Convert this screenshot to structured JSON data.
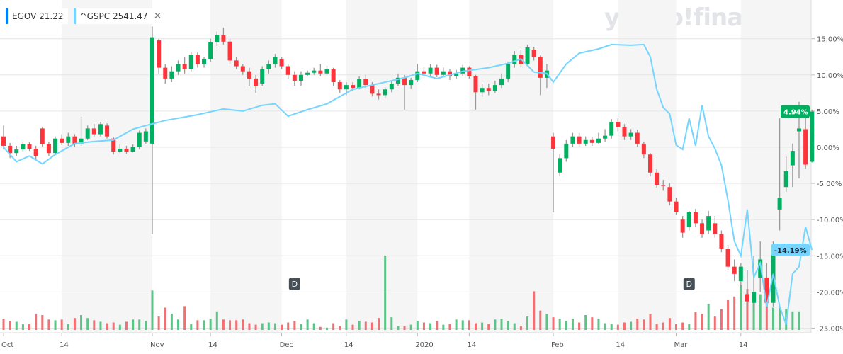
{
  "watermark": "yahoo!finance",
  "legend": [
    {
      "symbol": "EGOV",
      "value": "21.22",
      "color": "#0081f2"
    },
    {
      "symbol": "^GSPC",
      "value": "2541.47",
      "color": "#75d5ff",
      "close_icon": "close-icon"
    }
  ],
  "chart_data": {
    "type": "candlestick",
    "y_unit": "% change",
    "ylim": [
      -25,
      18
    ],
    "yticks": [
      "15.00%",
      "10.00%",
      "5.00%",
      "0.00%",
      "-5.00%",
      "-10.00%",
      "-15.00%",
      "-20.00%",
      "-25.00%"
    ],
    "ytick_values": [
      15,
      10,
      5,
      0,
      -5,
      -10,
      -15,
      -20,
      -25
    ],
    "xticks": [
      {
        "label": "Oct",
        "day": 0
      },
      {
        "label": "14",
        "day": 9
      },
      {
        "label": "Nov",
        "day": 23
      },
      {
        "label": "14",
        "day": 32
      },
      {
        "label": "Dec",
        "day": 43
      },
      {
        "label": "14",
        "day": 53
      },
      {
        "label": "2020",
        "day": 64
      },
      {
        "label": "14",
        "day": 72
      },
      {
        "label": "Feb",
        "day": 85
      },
      {
        "label": "14",
        "day": 95
      },
      {
        "label": "Mar",
        "day": 104
      },
      {
        "label": "14",
        "day": 114
      }
    ],
    "grid": true,
    "colors": {
      "up": "#00b061",
      "down": "#ff333a",
      "wick": "#999999",
      "compare_line": "#75d5ff",
      "vol_up": "#5bc587",
      "vol_down": "#f36f72",
      "shade": "#f5f5f5"
    },
    "egov_ohlc_note": "each entry is [open, close, high, low] in % change",
    "egov_ohlc": [
      [
        1.5,
        0.2,
        3,
        -0.3
      ],
      [
        0.2,
        -0.8,
        0.6,
        -1.5
      ],
      [
        -0.8,
        -0.3,
        0.2,
        -1.2
      ],
      [
        -0.3,
        0.4,
        0.8,
        -0.6
      ],
      [
        0.4,
        -0.2,
        0.7,
        -0.5
      ],
      [
        -0.2,
        -1.2,
        0.2,
        -1.6
      ],
      [
        2.6,
        0.4,
        2.8,
        0.1
      ],
      [
        0.4,
        -0.8,
        0.8,
        -1.2
      ],
      [
        -0.8,
        1.2,
        1.5,
        -1
      ],
      [
        1.2,
        0.6,
        1.8,
        0.3
      ],
      [
        0.6,
        1.5,
        2,
        0.2
      ],
      [
        1.5,
        0.5,
        1.8,
        0
      ],
      [
        0.5,
        1.2,
        4.2,
        0.2
      ],
      [
        1.2,
        2.6,
        3,
        1
      ],
      [
        2.6,
        1.8,
        3.2,
        1.5
      ],
      [
        1.8,
        3.2,
        3.5,
        1.5
      ],
      [
        3,
        1.5,
        3.3,
        1.2
      ],
      [
        1.2,
        -0.6,
        1.4,
        -1
      ],
      [
        -0.6,
        -0.2,
        0.4,
        -0.8
      ],
      [
        -0.2,
        -0.6,
        0.2,
        -0.9
      ],
      [
        -0.6,
        0,
        0.4,
        -0.7
      ],
      [
        0,
        2,
        2.3,
        -0.3
      ],
      [
        0.8,
        2.2,
        2.6,
        0.5
      ],
      [
        0.5,
        15.2,
        16.7,
        -12
      ],
      [
        14.8,
        11,
        15,
        10.2
      ],
      [
        11,
        9.5,
        11.5,
        8.8
      ],
      [
        9.5,
        10.5,
        11.2,
        9
      ],
      [
        10.5,
        11.5,
        12,
        10
      ],
      [
        11.5,
        10.8,
        12.5,
        10.2
      ],
      [
        10.8,
        12.8,
        13.2,
        10.5
      ],
      [
        12.8,
        11.5,
        13.1,
        11
      ],
      [
        11.5,
        12.2,
        12.5,
        11
      ],
      [
        12.2,
        14.5,
        15,
        11.8
      ],
      [
        14.5,
        15.5,
        16,
        14
      ],
      [
        15.5,
        14.6,
        16.5,
        14.2
      ],
      [
        14.6,
        12,
        15,
        11.5
      ],
      [
        12,
        11.2,
        12.5,
        10.8
      ],
      [
        11.2,
        10.5,
        11.5,
        10
      ],
      [
        10.5,
        9.5,
        11,
        8.5
      ],
      [
        9.5,
        8.5,
        10,
        7.5
      ],
      [
        8.8,
        10.8,
        11.2,
        8.5
      ],
      [
        10.8,
        11.5,
        12,
        10.2
      ],
      [
        11.5,
        12.5,
        12.9,
        11
      ],
      [
        12.2,
        11.2,
        12.5,
        10.8
      ],
      [
        11.2,
        10,
        11.5,
        9.5
      ],
      [
        10,
        9.2,
        10.5,
        8.5
      ],
      [
        9.2,
        10,
        10.5,
        8.5
      ],
      [
        10,
        10.3,
        10.6,
        9.8
      ],
      [
        10.3,
        10.6,
        11,
        10
      ],
      [
        10.6,
        10.2,
        11.5,
        9.8
      ],
      [
        10.2,
        10.8,
        11.3,
        10
      ],
      [
        10.8,
        9,
        11,
        8.5
      ],
      [
        9,
        8,
        9.3,
        7.5
      ],
      [
        8,
        8.6,
        9,
        7.2
      ],
      [
        8.6,
        8.2,
        9,
        7.8
      ],
      [
        8.2,
        9.4,
        9.8,
        8
      ],
      [
        9.4,
        8.6,
        10,
        8.2
      ],
      [
        8.6,
        7.4,
        9,
        7
      ],
      [
        7.4,
        7.2,
        8,
        6.6
      ],
      [
        7.2,
        8,
        8.3,
        6.8
      ],
      [
        8,
        8.8,
        9.2,
        7.6
      ],
      [
        8.8,
        9.6,
        10.2,
        8.5
      ],
      [
        9.6,
        8.6,
        10,
        5.2
      ],
      [
        8.6,
        9.3,
        9.6,
        8.1
      ],
      [
        9.3,
        10.5,
        11.5,
        9
      ],
      [
        10.5,
        10.2,
        11,
        9.8
      ],
      [
        10.2,
        11,
        11.5,
        9.8
      ],
      [
        11,
        10,
        11.4,
        9.7
      ],
      [
        10,
        10.5,
        11,
        9.7
      ],
      [
        10.5,
        9.8,
        10.8,
        9.3
      ],
      [
        9.8,
        10.2,
        10.7,
        9.5
      ],
      [
        10.2,
        11,
        11.4,
        9.8
      ],
      [
        11,
        9.8,
        11.2,
        9.5
      ],
      [
        9.8,
        7.6,
        10,
        5.2
      ],
      [
        7.6,
        8.2,
        8.8,
        7
      ],
      [
        8.2,
        7.8,
        8.8,
        7.2
      ],
      [
        7.8,
        8.6,
        9.2,
        7.5
      ],
      [
        8.6,
        9.5,
        10.2,
        8.2
      ],
      [
        9.5,
        11.5,
        11.8,
        9
      ],
      [
        11.5,
        12.8,
        13.3,
        11
      ],
      [
        12.8,
        11.5,
        13.5,
        11
      ],
      [
        11.5,
        13.8,
        14.2,
        11.2
      ],
      [
        13.5,
        12.5,
        13.8,
        12
      ],
      [
        12.5,
        9.6,
        12.7,
        7.2
      ],
      [
        9.6,
        10.6,
        11.5,
        8.2
      ],
      [
        1.5,
        -0.2,
        2,
        -9
      ],
      [
        -3.5,
        -1.5,
        -1,
        -4
      ],
      [
        -1.5,
        0.5,
        1,
        -2
      ],
      [
        0.5,
        1.5,
        2,
        0
      ],
      [
        1.5,
        0.5,
        2,
        0
      ],
      [
        0.5,
        1,
        1.5,
        0.2
      ],
      [
        1,
        0.6,
        1.4,
        0.2
      ],
      [
        0.6,
        1.2,
        2,
        0.4
      ],
      [
        1.2,
        1.6,
        2.5,
        0.8
      ],
      [
        1.6,
        3.5,
        3.9,
        1.2
      ],
      [
        3.5,
        2.8,
        4,
        2.2
      ],
      [
        2.8,
        1.5,
        3.2,
        1
      ],
      [
        1.5,
        2,
        2.5,
        1
      ],
      [
        2,
        0.5,
        2.4,
        0
      ],
      [
        0.5,
        -1,
        0.8,
        -1.5
      ],
      [
        -1,
        -3.5,
        -0.8,
        -4
      ],
      [
        -3.5,
        -5.2,
        -3,
        -5.6
      ],
      [
        -5.2,
        -5.3,
        -4.5,
        -6
      ],
      [
        -5.5,
        -7.5,
        -5,
        -8
      ],
      [
        -7.5,
        -9,
        -7,
        -9.3
      ],
      [
        -10,
        -11.8,
        -9.5,
        -12.5
      ],
      [
        -11,
        -9,
        -8.8,
        -11.5
      ],
      [
        -9,
        -10.5,
        -8.5,
        -11
      ],
      [
        -10.5,
        -12,
        -10,
        -12.5
      ],
      [
        -11.5,
        -9.5,
        -8.8,
        -12
      ],
      [
        -10.5,
        -12,
        -9.5,
        -12.5
      ],
      [
        -12,
        -14,
        -11.5,
        -14.5
      ],
      [
        -14,
        -16.5,
        -13.5,
        -17
      ],
      [
        -16.5,
        -17.5,
        -15.5,
        -18.5
      ],
      [
        -18.5,
        -16.5,
        -16,
        -19.5
      ],
      [
        -20.3,
        -21.3,
        -17,
        -22
      ],
      [
        -21.5,
        -20,
        -15,
        -22.5
      ],
      [
        -18,
        -15.5,
        -13,
        -20
      ],
      [
        -18,
        -21.5,
        -16,
        -22
      ],
      [
        -21.5,
        -13.7,
        -13,
        -22
      ],
      [
        -8.6,
        -7,
        4,
        -11.5
      ],
      [
        -5.5,
        -3.3,
        -1.3,
        -6.2
      ],
      [
        -2.5,
        -0.5,
        0.5,
        -5.5
      ],
      [
        2.2,
        2.6,
        6.3,
        -4.3
      ],
      [
        2.5,
        -2.4,
        5,
        -3
      ],
      [
        -2,
        4.94,
        5.2,
        -2.1
      ]
    ],
    "volume_relative": [
      15,
      12,
      11,
      8,
      8,
      22,
      20,
      14,
      13,
      14,
      8,
      16,
      20,
      16,
      13,
      11,
      9,
      10,
      7,
      11,
      14,
      14,
      12,
      53,
      18,
      30,
      22,
      14,
      32,
      8,
      13,
      13,
      15,
      25,
      14,
      13,
      13,
      14,
      9,
      7,
      9,
      10,
      9,
      7,
      10,
      12,
      8,
      14,
      9,
      4,
      3,
      9,
      5,
      14,
      7,
      12,
      11,
      10,
      16,
      100,
      17,
      5,
      5,
      7,
      12,
      10,
      9,
      12,
      7,
      8,
      14,
      13,
      13,
      9,
      10,
      8,
      14,
      15,
      12,
      9,
      5,
      18,
      52,
      26,
      21,
      17,
      15,
      12,
      15,
      10,
      20,
      17,
      15,
      9,
      8,
      7,
      10,
      11,
      15,
      14,
      21,
      8,
      10,
      16,
      8,
      10,
      8,
      24,
      22,
      35,
      18,
      28,
      40,
      45,
      60,
      55,
      50,
      48,
      35,
      30,
      30,
      28,
      25,
      25
    ],
    "gspc_pct": [
      {
        "day": 0,
        "v": 0
      },
      {
        "day": 2,
        "v": -2
      },
      {
        "day": 4,
        "v": -1.2
      },
      {
        "day": 6,
        "v": -2.3
      },
      {
        "day": 8,
        "v": -1
      },
      {
        "day": 11,
        "v": 0.5
      },
      {
        "day": 14,
        "v": 0.8
      },
      {
        "day": 17,
        "v": 1
      },
      {
        "day": 20,
        "v": 2.5
      },
      {
        "day": 22,
        "v": 3
      },
      {
        "day": 25,
        "v": 3.7
      },
      {
        "day": 30,
        "v": 4.5
      },
      {
        "day": 34,
        "v": 5.3
      },
      {
        "day": 37,
        "v": 5
      },
      {
        "day": 40,
        "v": 5.8
      },
      {
        "day": 42,
        "v": 6
      },
      {
        "day": 44,
        "v": 4.3
      },
      {
        "day": 47,
        "v": 5.2
      },
      {
        "day": 50,
        "v": 6
      },
      {
        "day": 54,
        "v": 8
      },
      {
        "day": 58,
        "v": 8.8
      },
      {
        "day": 62,
        "v": 9.6
      },
      {
        "day": 64,
        "v": 10.2
      },
      {
        "day": 67,
        "v": 9.5
      },
      {
        "day": 71,
        "v": 10.5
      },
      {
        "day": 75,
        "v": 11
      },
      {
        "day": 78,
        "v": 11.6
      },
      {
        "day": 80,
        "v": 12.2
      },
      {
        "day": 82,
        "v": 10.4
      },
      {
        "day": 84,
        "v": 10.2
      },
      {
        "day": 85,
        "v": 9
      },
      {
        "day": 87,
        "v": 11.5
      },
      {
        "day": 89,
        "v": 13
      },
      {
        "day": 92,
        "v": 13.6
      },
      {
        "day": 94,
        "v": 14.2
      },
      {
        "day": 97,
        "v": 14.1
      },
      {
        "day": 99,
        "v": 14.2
      },
      {
        "day": 100,
        "v": 12.5
      },
      {
        "day": 101,
        "v": 8
      },
      {
        "day": 102,
        "v": 5.5
      },
      {
        "day": 103,
        "v": 4.6
      },
      {
        "day": 104,
        "v": 0.3
      },
      {
        "day": 105,
        "v": -0.3
      },
      {
        "day": 106,
        "v": 4
      },
      {
        "day": 107,
        "v": 0.2
      },
      {
        "day": 108,
        "v": 5.8
      },
      {
        "day": 109,
        "v": 1.5
      },
      {
        "day": 110,
        "v": -0.2
      },
      {
        "day": 111,
        "v": -2.5
      },
      {
        "day": 112,
        "v": -7.3
      },
      {
        "day": 113,
        "v": -13
      },
      {
        "day": 114,
        "v": -15
      },
      {
        "day": 115,
        "v": -8.6
      },
      {
        "day": 116,
        "v": -18
      },
      {
        "day": 117,
        "v": -16
      },
      {
        "day": 118,
        "v": -22
      },
      {
        "day": 119,
        "v": -17.5
      },
      {
        "day": 120,
        "v": -22
      },
      {
        "day": 121,
        "v": -24.5
      },
      {
        "day": 122,
        "v": -17.5
      },
      {
        "day": 123,
        "v": -16.5
      },
      {
        "day": 124,
        "v": -11
      },
      {
        "day": 125,
        "v": -14.19
      }
    ],
    "dividend_markers": [
      {
        "day": 45,
        "label": "D"
      },
      {
        "day": 106,
        "label": "D"
      }
    ],
    "last_badges": [
      {
        "label": "4.94%",
        "value": 4.94,
        "color": "#00b061",
        "text_color": "#ffffff"
      },
      {
        "label": "-14.19%",
        "value": -14.19,
        "color": "#75d5ff",
        "text_color": "#1a2a3a"
      }
    ]
  }
}
